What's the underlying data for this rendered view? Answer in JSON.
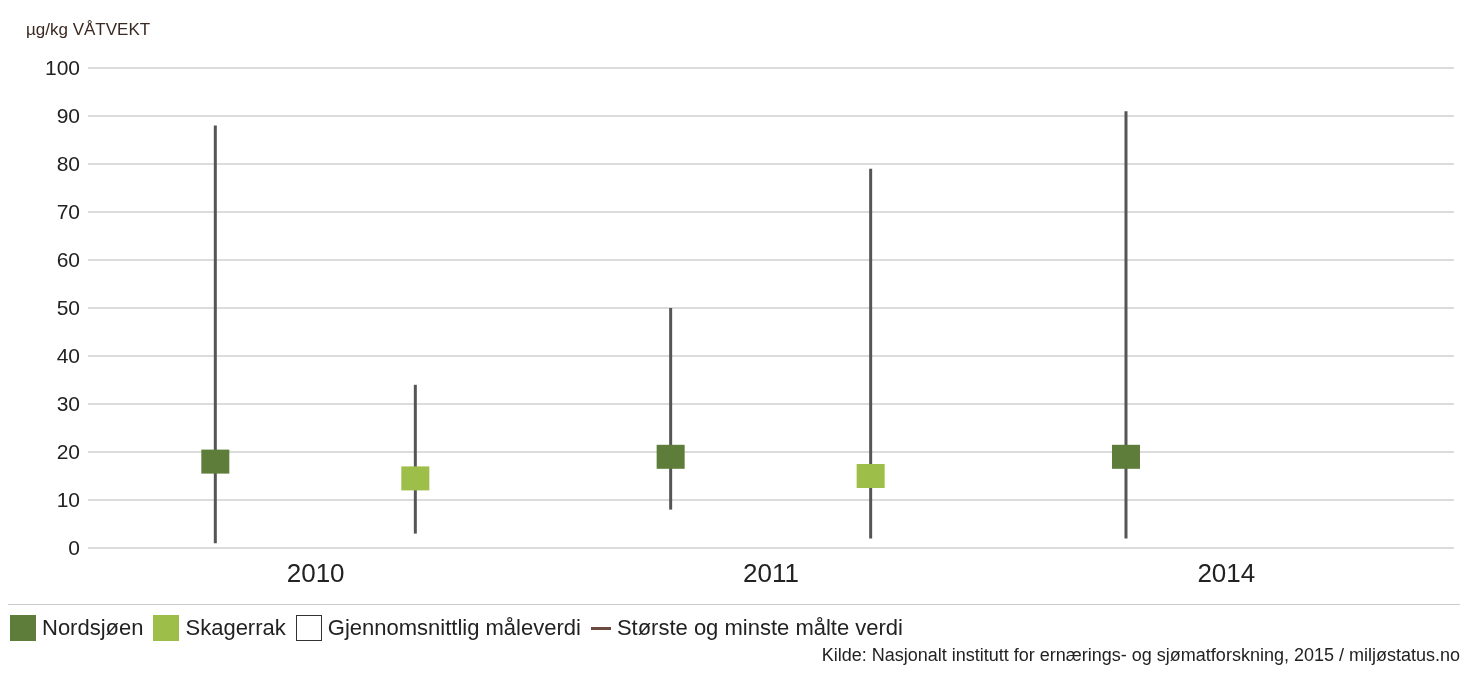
{
  "chart_data": {
    "type": "scatter",
    "ylabel": "µg/kg VÅTVEKT",
    "categories": [
      "2010",
      "2011",
      "2014"
    ],
    "marker": "square",
    "ylim": [
      0,
      100
    ],
    "yticks": [
      0,
      10,
      20,
      30,
      40,
      50,
      60,
      70,
      80,
      90,
      100
    ],
    "grid": "y",
    "legend": "bottom left",
    "series": [
      {
        "name": "Nordsjøen",
        "color": "#5e7d3a",
        "values": [
          18,
          19,
          19
        ],
        "errors": [
          [
            1,
            88
          ],
          [
            8,
            50
          ],
          [
            2,
            91
          ]
        ]
      },
      {
        "name": "Skagerrak",
        "color": "#9dbf4a",
        "values": [
          14.5,
          15,
          null
        ],
        "errors": [
          [
            3,
            34
          ],
          [
            2,
            79
          ],
          null
        ]
      }
    ],
    "annotations": [
      "Gjennomsnittlig måleverdi",
      "Største og minste målte verdi",
      "Kilde: Nasjonalt institutt for ernærings- og sjømatforskning, 2015 / miljøstatus.no"
    ]
  }
}
